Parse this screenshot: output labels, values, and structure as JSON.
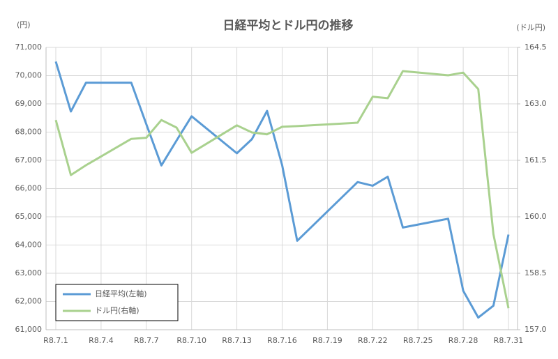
{
  "chart_data": {
    "type": "line",
    "title": "日経平均とドル円の推移",
    "y_label": "(円)",
    "y2_label": "(ドル円)",
    "x": [
      "R8.7.1",
      "R8.7.2",
      "R8.7.3",
      "R8.7.6",
      "R8.7.7",
      "R8.7.8",
      "R8.7.9",
      "R8.7.10",
      "R8.7.13",
      "R8.7.14",
      "R8.7.15",
      "R8.7.16",
      "R8.7.17",
      "R8.7.21",
      "R8.7.22",
      "R8.7.23",
      "R8.7.24",
      "R8.7.27",
      "R8.7.28",
      "R8.7.29",
      "R8.7.30",
      "R8.7.31"
    ],
    "xticks": [
      "R8.7.1",
      "R8.7.4",
      "R8.7.7",
      "R8.7.10",
      "R8.7.13",
      "R8.7.16",
      "R8.7.19",
      "R8.7.22",
      "R8.7.25",
      "R8.7.28",
      "R8.7.31"
    ],
    "series": [
      {
        "name": "日経平均(左軸)",
        "color": "#5b9bd5",
        "values": [
          70500,
          68730,
          69750,
          69750,
          68280,
          66820,
          67700,
          68560,
          67250,
          67750,
          68750,
          66830,
          64150,
          66230,
          66100,
          66420,
          64620,
          64930,
          62380,
          61430,
          61850,
          64370
        ]
      },
      {
        "name": "ドル円(右軸)",
        "color": "#a9d18e",
        "axis": "y2",
        "values": [
          162.57,
          161.11,
          161.37,
          162.07,
          162.1,
          162.57,
          162.37,
          161.7,
          162.43,
          162.24,
          162.19,
          162.39,
          162.41,
          162.5,
          163.19,
          163.15,
          163.87,
          163.76,
          163.83,
          163.39,
          159.54,
          157.57
        ]
      }
    ],
    "ylim": [
      61000,
      71000
    ],
    "yticks": [
      {
        "value": 61000,
        "label": "61,000"
      },
      {
        "value": 62000,
        "label": "62,000"
      },
      {
        "value": 63000,
        "label": "63,000"
      },
      {
        "value": 64000,
        "label": "64,000"
      },
      {
        "value": 65000,
        "label": "65,000"
      },
      {
        "value": 66000,
        "label": "66,000"
      },
      {
        "value": 67000,
        "label": "67,000"
      },
      {
        "value": 68000,
        "label": "68,000"
      },
      {
        "value": 69000,
        "label": "69,000"
      },
      {
        "value": 70000,
        "label": "70,000"
      },
      {
        "value": 71000,
        "label": "71,000"
      }
    ],
    "y2lim": [
      157,
      164.5
    ],
    "y2ticks": [
      {
        "value": 157,
        "label": "157.0"
      },
      158.5,
      {
        "value": 160,
        "label": "160.0"
      },
      161.5,
      {
        "value": 163,
        "label": "163.0"
      },
      164.5
    ],
    "grid": true,
    "legend": "lower left"
  }
}
